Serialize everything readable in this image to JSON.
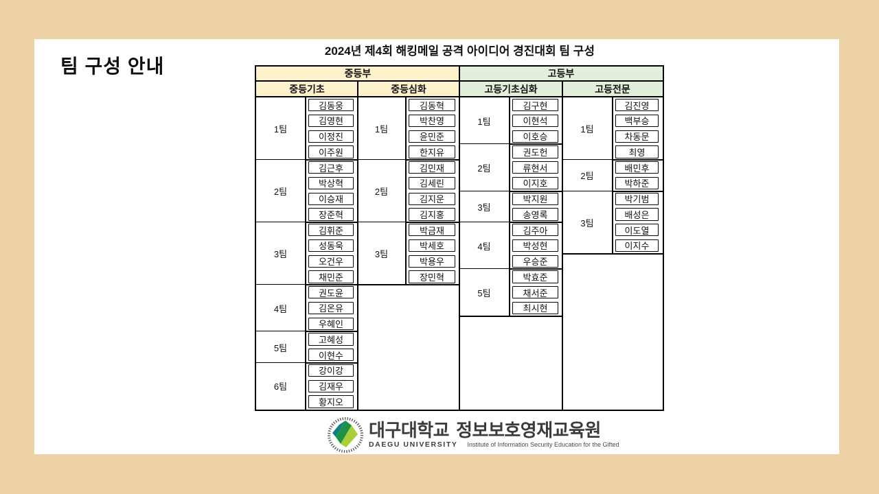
{
  "page": {
    "background_color": "#efd3a8",
    "card_color": "#ffffff"
  },
  "heading": "팀 구성 안내",
  "table": {
    "title": "2024년 제4회 해킹메일 공격 아이디어 경진대회 팀 구성",
    "total_rows": 20,
    "divisions": [
      {
        "label": "중등부",
        "header_color": "#fdf2cc",
        "columns": [
          {
            "label": "중등기초",
            "teams": [
              {
                "label": "1팀",
                "members": [
                  "김동웅",
                  "김영현",
                  "이정진",
                  "이주원"
                ]
              },
              {
                "label": "2팀",
                "members": [
                  "김근후",
                  "박상혁",
                  "이승재",
                  "장준혁"
                ]
              },
              {
                "label": "3팀",
                "members": [
                  "김휘준",
                  "성동욱",
                  "오건우",
                  "채민준"
                ]
              },
              {
                "label": "4팀",
                "members": [
                  "권도윤",
                  "김온유",
                  "우혜인"
                ]
              },
              {
                "label": "5팀",
                "members": [
                  "고혜성",
                  "이현수"
                ]
              },
              {
                "label": "6팀",
                "members": [
                  "강이강",
                  "김재우",
                  "황지오"
                ]
              }
            ]
          },
          {
            "label": "중등심화",
            "teams": [
              {
                "label": "1팀",
                "members": [
                  "김동혁",
                  "박찬영",
                  "윤민준",
                  "한지유"
                ]
              },
              {
                "label": "2팀",
                "members": [
                  "김민재",
                  "김세린",
                  "김지운",
                  "김지홍"
                ]
              },
              {
                "label": "3팀",
                "members": [
                  "박금재",
                  "박세호",
                  "박용우",
                  "장민혁"
                ]
              }
            ]
          }
        ]
      },
      {
        "label": "고등부",
        "header_color": "#e2efda",
        "columns": [
          {
            "label": "고등기초심화",
            "teams": [
              {
                "label": "1팀",
                "members": [
                  "김구현",
                  "이현석",
                  "이호승"
                ]
              },
              {
                "label": "2팀",
                "members": [
                  "권도헌",
                  "류현서",
                  "이지호"
                ]
              },
              {
                "label": "3팀",
                "members": [
                  "박지원",
                  "송영록"
                ]
              },
              {
                "label": "4팀",
                "members": [
                  "김주아",
                  "박성현",
                  "우승준"
                ]
              },
              {
                "label": "5팀",
                "members": [
                  "박효준",
                  "채서준",
                  "최시현"
                ]
              }
            ]
          },
          {
            "label": "고등전문",
            "teams": [
              {
                "label": "1팀",
                "members": [
                  "김진영",
                  "백부승",
                  "차동문",
                  "최영"
                ]
              },
              {
                "label": "2팀",
                "members": [
                  "배민후",
                  "박하준"
                ]
              },
              {
                "label": "3팀",
                "members": [
                  "박기범",
                  "배성은",
                  "이도열",
                  "이지수"
                ]
              }
            ]
          }
        ]
      }
    ]
  },
  "footer": {
    "university_kr": "대구대학교",
    "institute_kr": "정보보호영재교육원",
    "university_en": "DAEGU UNIVERSITY",
    "institute_en": "Institute of Information Security Education for the Gifted",
    "emblem_colors": {
      "teal": "#0e7f86",
      "green": "#1e9145",
      "lime": "#a8ce38",
      "ring": "#555555"
    }
  }
}
